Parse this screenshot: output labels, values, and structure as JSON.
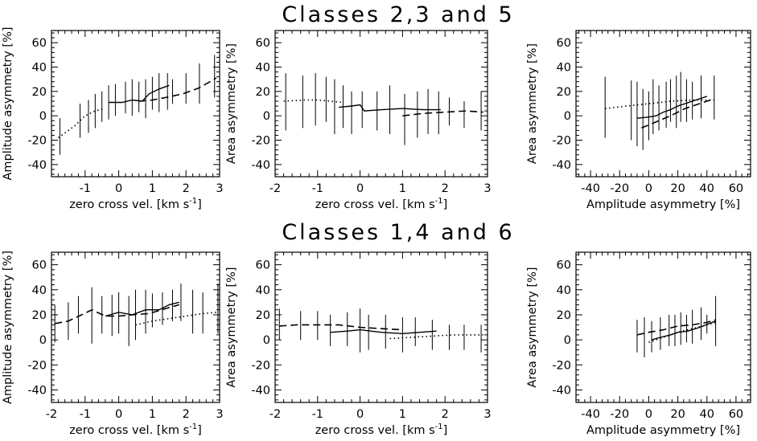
{
  "row_titles": [
    "Classes 2,3 and 5",
    "Classes 1,4 and 6"
  ],
  "chart_data": [
    {
      "type": "line",
      "row": 0,
      "col": 0,
      "xlabel": "zero cross vel. [km s",
      "xlabel_sup": "-1",
      "xlabel_tail": "]",
      "ylabel": "Amplitude asymmetry [%]",
      "xlim": [
        -2,
        3
      ],
      "ylim": [
        -50,
        70
      ],
      "xticks": [
        -1,
        0,
        1,
        2,
        3
      ],
      "yticks": [
        -40,
        -20,
        0,
        20,
        40,
        60
      ],
      "series": [
        {
          "style": "dotted",
          "x": [
            -1.8,
            -1.3,
            -1.0,
            -0.7,
            -0.4
          ],
          "y": [
            -18,
            -8,
            0,
            4,
            6
          ]
        },
        {
          "style": "solid",
          "x": [
            -0.3,
            0.1,
            0.4,
            0.7,
            0.9,
            1.2,
            1.5
          ],
          "y": [
            11,
            11,
            13,
            12,
            18,
            22,
            25
          ]
        },
        {
          "style": "dashed",
          "x": [
            0.6,
            1.0,
            1.4,
            1.9,
            2.4,
            2.9
          ],
          "y": [
            12,
            13,
            15,
            18,
            23,
            31
          ]
        }
      ],
      "error_bars": [
        {
          "x": -1.75,
          "lo": -32,
          "hi": -2
        },
        {
          "x": -1.15,
          "lo": -18,
          "hi": 10
        },
        {
          "x": -0.9,
          "lo": -14,
          "hi": 13
        },
        {
          "x": -0.7,
          "lo": -10,
          "hi": 18
        },
        {
          "x": -0.5,
          "lo": -5,
          "hi": 20
        },
        {
          "x": -0.3,
          "lo": -3,
          "hi": 25
        },
        {
          "x": -0.1,
          "lo": 0,
          "hi": 26
        },
        {
          "x": 0.2,
          "lo": 2,
          "hi": 28
        },
        {
          "x": 0.4,
          "lo": 0,
          "hi": 30
        },
        {
          "x": 0.6,
          "lo": 3,
          "hi": 28
        },
        {
          "x": 0.8,
          "lo": -2,
          "hi": 30
        },
        {
          "x": 1.0,
          "lo": 5,
          "hi": 32
        },
        {
          "x": 1.2,
          "lo": 3,
          "hi": 35
        },
        {
          "x": 1.45,
          "lo": 5,
          "hi": 35
        },
        {
          "x": 1.6,
          "lo": 10,
          "hi": 30
        },
        {
          "x": 2.0,
          "lo": 10,
          "hi": 35
        },
        {
          "x": 2.4,
          "lo": 10,
          "hi": 43
        },
        {
          "x": 2.85,
          "lo": 15,
          "hi": 50
        }
      ]
    },
    {
      "type": "line",
      "row": 0,
      "col": 1,
      "xlabel": "zero cross vel. [km s",
      "xlabel_sup": "-1",
      "xlabel_tail": "]",
      "ylabel": "Area asymmetry [%]",
      "xlim": [
        -2,
        3
      ],
      "ylim": [
        -50,
        70
      ],
      "xticks": [
        -2,
        -1,
        0,
        1,
        2,
        3
      ],
      "yticks": [
        -40,
        -20,
        0,
        20,
        40,
        60
      ],
      "series": [
        {
          "style": "dotted",
          "x": [
            -1.8,
            -1.3,
            -1.0,
            -0.7,
            -0.4
          ],
          "y": [
            12,
            13,
            13,
            12,
            11
          ]
        },
        {
          "style": "solid",
          "x": [
            -0.5,
            -0.2,
            0.0,
            0.1,
            0.5,
            1.0,
            1.5,
            1.9
          ],
          "y": [
            7,
            8,
            9,
            4,
            5,
            6,
            5,
            5
          ]
        },
        {
          "style": "dashed",
          "x": [
            1.0,
            1.5,
            2.0,
            2.5,
            2.9
          ],
          "y": [
            0,
            2,
            3,
            4,
            3
          ]
        }
      ],
      "error_bars": [
        {
          "x": -1.75,
          "lo": -12,
          "hi": 35
        },
        {
          "x": -1.35,
          "lo": -10,
          "hi": 33
        },
        {
          "x": -1.05,
          "lo": -8,
          "hi": 35
        },
        {
          "x": -0.8,
          "lo": -5,
          "hi": 32
        },
        {
          "x": -0.6,
          "lo": -15,
          "hi": 30
        },
        {
          "x": -0.4,
          "lo": -10,
          "hi": 25
        },
        {
          "x": -0.2,
          "lo": -15,
          "hi": 20
        },
        {
          "x": 0.05,
          "lo": -10,
          "hi": 20
        },
        {
          "x": 0.4,
          "lo": -12,
          "hi": 20
        },
        {
          "x": 0.7,
          "lo": -15,
          "hi": 25
        },
        {
          "x": 1.05,
          "lo": -24,
          "hi": 18
        },
        {
          "x": 1.35,
          "lo": -18,
          "hi": 20
        },
        {
          "x": 1.6,
          "lo": -15,
          "hi": 22
        },
        {
          "x": 1.85,
          "lo": -15,
          "hi": 20
        },
        {
          "x": 2.1,
          "lo": -8,
          "hi": 15
        },
        {
          "x": 2.45,
          "lo": -10,
          "hi": 12
        },
        {
          "x": 2.85,
          "lo": -12,
          "hi": 20
        }
      ]
    },
    {
      "type": "line",
      "row": 0,
      "col": 2,
      "xlabel": "Amplitude asymmetry [%]",
      "ylabel": "Area asymmetry [%]",
      "xlim": [
        -50,
        70
      ],
      "ylim": [
        -50,
        70
      ],
      "xticks": [
        -40,
        -20,
        0,
        20,
        40,
        60
      ],
      "yticks": [
        -40,
        -20,
        0,
        20,
        40,
        60
      ],
      "series": [
        {
          "style": "dotted",
          "x": [
            -30,
            -15,
            0,
            15,
            30,
            45
          ],
          "y": [
            6,
            8,
            10,
            12,
            13,
            13
          ]
        },
        {
          "style": "solid",
          "x": [
            -8,
            0,
            5,
            10,
            15,
            20,
            30,
            40
          ],
          "y": [
            -2,
            -1,
            0,
            3,
            5,
            8,
            12,
            16
          ]
        },
        {
          "style": "dashed",
          "x": [
            -5,
            5,
            15,
            25,
            35,
            45
          ],
          "y": [
            -10,
            -5,
            0,
            6,
            10,
            14
          ]
        }
      ],
      "error_bars": [
        {
          "x": -30,
          "lo": -18,
          "hi": 32
        },
        {
          "x": -12,
          "lo": -20,
          "hi": 29
        },
        {
          "x": -8,
          "lo": -25,
          "hi": 28
        },
        {
          "x": -4,
          "lo": -28,
          "hi": 22
        },
        {
          "x": 0,
          "lo": -20,
          "hi": 20
        },
        {
          "x": 3,
          "lo": -15,
          "hi": 30
        },
        {
          "x": 7,
          "lo": -12,
          "hi": 25
        },
        {
          "x": 12,
          "lo": -10,
          "hi": 28
        },
        {
          "x": 15,
          "lo": -5,
          "hi": 30
        },
        {
          "x": 19,
          "lo": -10,
          "hi": 33
        },
        {
          "x": 22,
          "lo": -5,
          "hi": 36
        },
        {
          "x": 26,
          "lo": -5,
          "hi": 30
        },
        {
          "x": 30,
          "lo": -3,
          "hi": 28
        },
        {
          "x": 36,
          "lo": -2,
          "hi": 33
        },
        {
          "x": 45,
          "lo": -3,
          "hi": 33
        }
      ]
    },
    {
      "type": "line",
      "row": 1,
      "col": 0,
      "xlabel": "zero cross vel. [km s",
      "xlabel_sup": "-1",
      "xlabel_tail": "]",
      "ylabel": "Amplitude asymmetry [%]",
      "xlim": [
        -2,
        3
      ],
      "ylim": [
        -50,
        70
      ],
      "xticks": [
        -2,
        -1,
        0,
        1,
        2,
        3
      ],
      "yticks": [
        -40,
        -20,
        0,
        20,
        40,
        60
      ],
      "series": [
        {
          "style": "dashed",
          "x": [
            -1.9,
            -1.5,
            -1.1,
            -0.8,
            -0.4,
            0.0,
            0.4,
            0.9,
            1.4,
            1.8
          ],
          "y": [
            13,
            15,
            20,
            24,
            19,
            19,
            20,
            21,
            25,
            28
          ]
        },
        {
          "style": "solid",
          "x": [
            -0.4,
            0.0,
            0.4,
            0.8,
            1.2,
            1.5,
            1.8
          ],
          "y": [
            19,
            22,
            20,
            24,
            24,
            28,
            30
          ]
        },
        {
          "style": "dotted",
          "x": [
            0.5,
            1.0,
            1.5,
            2.0,
            2.5,
            2.9
          ],
          "y": [
            12,
            15,
            17,
            19,
            21,
            22
          ]
        }
      ],
      "error_bars": [
        {
          "x": -1.9,
          "lo": -2,
          "hi": 28
        },
        {
          "x": -1.5,
          "lo": 0,
          "hi": 30
        },
        {
          "x": -1.2,
          "lo": 5,
          "hi": 35
        },
        {
          "x": -0.8,
          "lo": -3,
          "hi": 42
        },
        {
          "x": -0.5,
          "lo": 5,
          "hi": 35
        },
        {
          "x": -0.2,
          "lo": 3,
          "hi": 36
        },
        {
          "x": 0.0,
          "lo": 5,
          "hi": 38
        },
        {
          "x": 0.3,
          "lo": -5,
          "hi": 35
        },
        {
          "x": 0.5,
          "lo": 0,
          "hi": 40
        },
        {
          "x": 0.8,
          "lo": 5,
          "hi": 40
        },
        {
          "x": 1.0,
          "lo": 10,
          "hi": 37
        },
        {
          "x": 1.3,
          "lo": 12,
          "hi": 38
        },
        {
          "x": 1.6,
          "lo": 15,
          "hi": 40
        },
        {
          "x": 1.85,
          "lo": 15,
          "hi": 45
        },
        {
          "x": 2.2,
          "lo": 5,
          "hi": 40
        },
        {
          "x": 2.5,
          "lo": 5,
          "hi": 38
        },
        {
          "x": 2.95,
          "lo": 5,
          "hi": 45
        }
      ]
    },
    {
      "type": "line",
      "row": 1,
      "col": 1,
      "xlabel": "zero cross vel. [km s",
      "xlabel_sup": "-1",
      "xlabel_tail": "]",
      "ylabel": "Area asymmetry [%]",
      "xlim": [
        -2,
        3
      ],
      "ylim": [
        -50,
        70
      ],
      "xticks": [
        -2,
        -1,
        0,
        1,
        2,
        3
      ],
      "yticks": [
        -40,
        -20,
        0,
        20,
        40,
        60
      ],
      "series": [
        {
          "style": "dashed",
          "x": [
            -1.9,
            -1.5,
            -1.0,
            -0.5,
            0.0,
            0.5,
            1.0
          ],
          "y": [
            11,
            12,
            12,
            12,
            10,
            9,
            8
          ]
        },
        {
          "style": "solid",
          "x": [
            -0.7,
            -0.3,
            0.0,
            0.5,
            1.0,
            1.4,
            1.8
          ],
          "y": [
            6,
            7,
            8,
            6,
            5,
            6,
            7
          ]
        },
        {
          "style": "dotted",
          "x": [
            0.7,
            1.2,
            1.7,
            2.2,
            2.6,
            2.9
          ],
          "y": [
            1,
            2,
            3,
            4,
            4,
            4
          ]
        }
      ],
      "error_bars": [
        {
          "x": -1.9,
          "lo": 0,
          "hi": 25
        },
        {
          "x": -1.4,
          "lo": 0,
          "hi": 23
        },
        {
          "x": -1.0,
          "lo": 0,
          "hi": 23
        },
        {
          "x": -0.7,
          "lo": -5,
          "hi": 20
        },
        {
          "x": -0.3,
          "lo": -5,
          "hi": 22
        },
        {
          "x": 0.0,
          "lo": -10,
          "hi": 25
        },
        {
          "x": 0.2,
          "lo": -8,
          "hi": 20
        },
        {
          "x": 0.6,
          "lo": -7,
          "hi": 20
        },
        {
          "x": 1.0,
          "lo": -10,
          "hi": 18
        },
        {
          "x": 1.3,
          "lo": -5,
          "hi": 18
        },
        {
          "x": 1.7,
          "lo": -8,
          "hi": 16
        },
        {
          "x": 2.1,
          "lo": -8,
          "hi": 12
        },
        {
          "x": 2.45,
          "lo": -8,
          "hi": 12
        },
        {
          "x": 2.85,
          "lo": -10,
          "hi": 12
        }
      ]
    },
    {
      "type": "line",
      "row": 1,
      "col": 2,
      "xlabel": "Amplitude asymmetry [%]",
      "ylabel": "Area asymmetry [%]",
      "xlim": [
        -50,
        70
      ],
      "ylim": [
        -50,
        70
      ],
      "xticks": [
        -40,
        -20,
        0,
        20,
        40,
        60
      ],
      "yticks": [
        -40,
        -20,
        0,
        20,
        40,
        60
      ],
      "series": [
        {
          "style": "dashed",
          "x": [
            -8,
            0,
            10,
            20,
            30,
            40,
            46
          ],
          "y": [
            4,
            6,
            8,
            11,
            12,
            14,
            16
          ]
        },
        {
          "style": "solid",
          "x": [
            2,
            8,
            15,
            20,
            27,
            35,
            46
          ],
          "y": [
            0,
            2,
            4,
            6,
            7,
            10,
            15
          ]
        },
        {
          "style": "dotted",
          "x": [
            0,
            10,
            20,
            30,
            40,
            46
          ],
          "y": [
            -2,
            2,
            6,
            9,
            12,
            14
          ]
        }
      ],
      "error_bars": [
        {
          "x": -8,
          "lo": -10,
          "hi": 16
        },
        {
          "x": -3,
          "lo": -14,
          "hi": 18
        },
        {
          "x": 2,
          "lo": -10,
          "hi": 15
        },
        {
          "x": 8,
          "lo": -8,
          "hi": 18
        },
        {
          "x": 14,
          "lo": -5,
          "hi": 20
        },
        {
          "x": 18,
          "lo": -5,
          "hi": 20
        },
        {
          "x": 22,
          "lo": -4,
          "hi": 22
        },
        {
          "x": 26,
          "lo": -2,
          "hi": 20
        },
        {
          "x": 30,
          "lo": -3,
          "hi": 24
        },
        {
          "x": 36,
          "lo": 0,
          "hi": 26
        },
        {
          "x": 40,
          "lo": 5,
          "hi": 20
        },
        {
          "x": 46,
          "lo": -5,
          "hi": 35
        }
      ]
    }
  ]
}
